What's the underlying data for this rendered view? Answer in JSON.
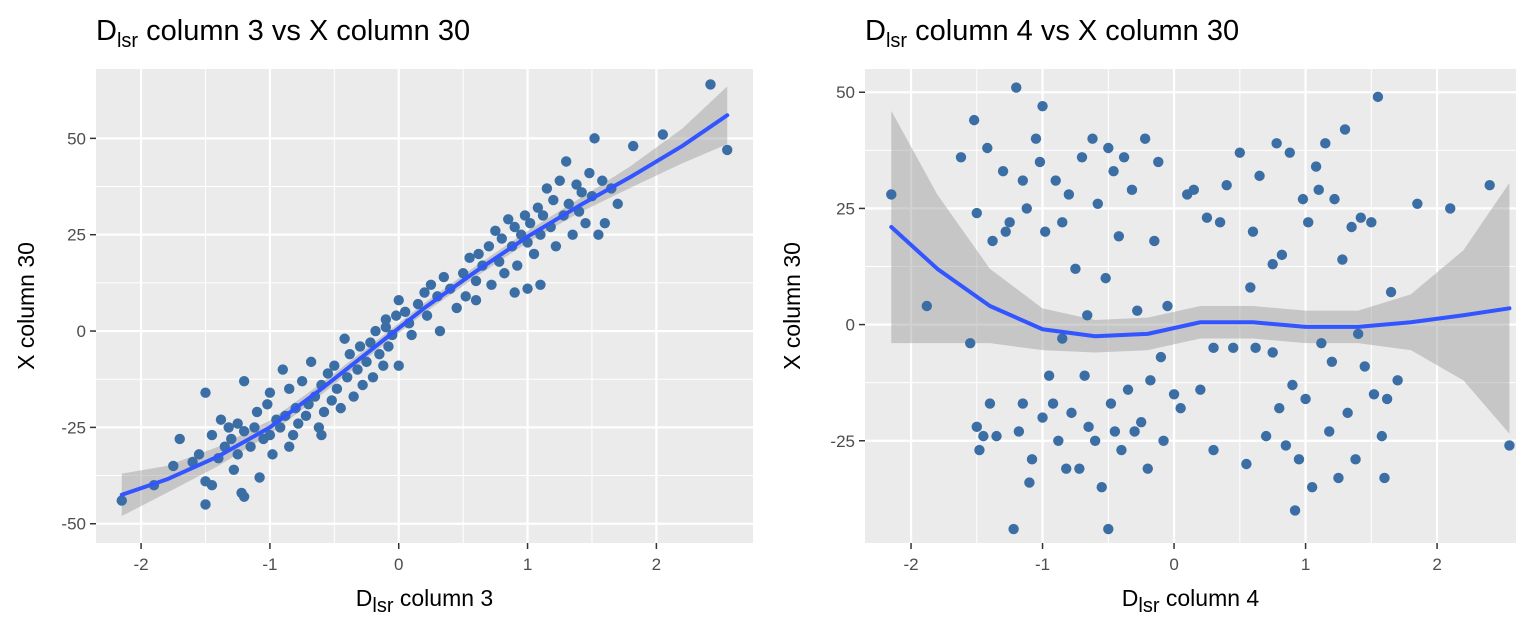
{
  "chart_data": [
    {
      "type": "scatter",
      "title_main": "D",
      "title_sub": "lsr",
      "title_rest": " column 3 vs X column 30",
      "xlabel_main": "D",
      "xlabel_sub": "lsr",
      "xlabel_rest": " column 3",
      "ylabel": "X column 30",
      "xlim": [
        -2.35,
        2.75
      ],
      "ylim": [
        -55,
        68
      ],
      "xticks": [
        -2,
        -1,
        0,
        1,
        2
      ],
      "xtick_labels": [
        "-2",
        "-1",
        "0",
        "1",
        "2"
      ],
      "yticks": [
        -50,
        -25,
        0,
        25,
        50
      ],
      "ytick_labels": [
        "-50",
        "-25",
        "0",
        "25",
        "50"
      ],
      "grid": true,
      "point_color": "#3a6ea5",
      "smooth_color": "#3355ff",
      "band_color": "#999999",
      "smooth": {
        "x": [
          -2.15,
          -1.8,
          -1.4,
          -1.0,
          -0.6,
          -0.2,
          0.2,
          0.6,
          1.0,
          1.4,
          1.8,
          2.2,
          2.55
        ],
        "y": [
          -42.5,
          -38.5,
          -32.5,
          -25,
          -15,
          -4.5,
          6,
          15.5,
          24.5,
          32.5,
          40,
          48,
          56
        ]
      },
      "band_halfwidth": [
        5.5,
        3.5,
        2.5,
        1.8,
        1.5,
        1.3,
        1.3,
        1.4,
        1.5,
        1.8,
        2.8,
        4.5,
        7.5
      ],
      "points": [
        [
          -2.15,
          -44
        ],
        [
          -1.9,
          -40
        ],
        [
          -1.75,
          -35
        ],
        [
          -1.7,
          -28
        ],
        [
          -1.6,
          -34
        ],
        [
          -1.55,
          -32
        ],
        [
          -1.5,
          -16
        ],
        [
          -1.5,
          -39
        ],
        [
          -1.5,
          -45
        ],
        [
          -1.45,
          -40
        ],
        [
          -1.45,
          -27
        ],
        [
          -1.4,
          -33
        ],
        [
          -1.38,
          -23
        ],
        [
          -1.35,
          -30
        ],
        [
          -1.32,
          -25
        ],
        [
          -1.3,
          -28
        ],
        [
          -1.28,
          -36
        ],
        [
          -1.25,
          -24
        ],
        [
          -1.25,
          -32
        ],
        [
          -1.22,
          -42
        ],
        [
          -1.2,
          -43
        ],
        [
          -1.2,
          -26
        ],
        [
          -1.2,
          -13
        ],
        [
          -1.15,
          -30
        ],
        [
          -1.12,
          -25
        ],
        [
          -1.1,
          -21
        ],
        [
          -1.08,
          -38
        ],
        [
          -1.05,
          -28
        ],
        [
          -1.02,
          -19
        ],
        [
          -1.0,
          -16
        ],
        [
          -1.0,
          -27
        ],
        [
          -0.98,
          -32
        ],
        [
          -0.95,
          -23
        ],
        [
          -0.92,
          -25
        ],
        [
          -0.9,
          -10
        ],
        [
          -0.88,
          -22
        ],
        [
          -0.85,
          -30
        ],
        [
          -0.85,
          -15
        ],
        [
          -0.82,
          -27
        ],
        [
          -0.8,
          -20
        ],
        [
          -0.78,
          -24
        ],
        [
          -0.75,
          -13
        ],
        [
          -0.72,
          -22
        ],
        [
          -0.7,
          -19
        ],
        [
          -0.68,
          -8
        ],
        [
          -0.65,
          -17
        ],
        [
          -0.62,
          -25
        ],
        [
          -0.6,
          -14
        ],
        [
          -0.58,
          -21
        ],
        [
          -0.55,
          -11
        ],
        [
          -0.52,
          -18
        ],
        [
          -0.5,
          -9
        ],
        [
          -0.48,
          -15
        ],
        [
          -0.45,
          -20
        ],
        [
          -0.42,
          -2
        ],
        [
          -0.4,
          -12
        ],
        [
          -0.38,
          -6
        ],
        [
          -0.35,
          -17
        ],
        [
          -0.32,
          -10
        ],
        [
          -0.3,
          -4
        ],
        [
          -0.28,
          -14
        ],
        [
          -0.25,
          -8
        ],
        [
          -0.22,
          -3
        ],
        [
          -0.2,
          -12
        ],
        [
          -0.18,
          0
        ],
        [
          -0.15,
          -6
        ],
        [
          -0.12,
          -9
        ],
        [
          -0.1,
          3
        ],
        [
          -0.08,
          -4
        ],
        [
          -0.05,
          -1
        ],
        [
          -0.02,
          4
        ],
        [
          0.0,
          8
        ],
        [
          0.0,
          -9
        ],
        [
          0.05,
          5
        ],
        [
          0.08,
          2
        ],
        [
          0.1,
          -1
        ],
        [
          0.15,
          7
        ],
        [
          0.2,
          10
        ],
        [
          0.22,
          4
        ],
        [
          0.25,
          12
        ],
        [
          0.3,
          9
        ],
        [
          0.32,
          0
        ],
        [
          0.35,
          14
        ],
        [
          0.4,
          11
        ],
        [
          0.45,
          6
        ],
        [
          0.5,
          15
        ],
        [
          0.52,
          9
        ],
        [
          0.55,
          19
        ],
        [
          0.6,
          13
        ],
        [
          0.62,
          20
        ],
        [
          0.65,
          17
        ],
        [
          0.7,
          22
        ],
        [
          0.72,
          12
        ],
        [
          0.75,
          26
        ],
        [
          0.78,
          18
        ],
        [
          0.8,
          24
        ],
        [
          0.82,
          15
        ],
        [
          0.85,
          29
        ],
        [
          0.88,
          22
        ],
        [
          0.9,
          27
        ],
        [
          0.92,
          17
        ],
        [
          0.95,
          25
        ],
        [
          0.98,
          30
        ],
        [
          1.0,
          23
        ],
        [
          1.02,
          28
        ],
        [
          1.05,
          20
        ],
        [
          1.08,
          32
        ],
        [
          1.1,
          25
        ],
        [
          1.12,
          30
        ],
        [
          1.15,
          37
        ],
        [
          1.18,
          27
        ],
        [
          1.2,
          34
        ],
        [
          1.22,
          22
        ],
        [
          1.25,
          39
        ],
        [
          1.28,
          30
        ],
        [
          1.3,
          44
        ],
        [
          1.32,
          33
        ],
        [
          1.35,
          25
        ],
        [
          1.38,
          38
        ],
        [
          1.4,
          31
        ],
        [
          1.42,
          36
        ],
        [
          1.45,
          28
        ],
        [
          1.48,
          41
        ],
        [
          1.5,
          35
        ],
        [
          1.52,
          50
        ],
        [
          1.55,
          25
        ],
        [
          1.58,
          39
        ],
        [
          1.6,
          28
        ],
        [
          1.65,
          37
        ],
        [
          1.7,
          33
        ],
        [
          1.82,
          48
        ],
        [
          2.05,
          51
        ],
        [
          2.42,
          64
        ],
        [
          2.55,
          47
        ],
        [
          1.0,
          11
        ],
        [
          1.1,
          12
        ],
        [
          0.9,
          10
        ],
        [
          0.6,
          8
        ],
        [
          -0.1,
          1
        ],
        [
          -0.6,
          -27
        ]
      ]
    },
    {
      "type": "scatter",
      "title_main": "D",
      "title_sub": "lsr",
      "title_rest": " column 4 vs X column 30",
      "xlabel_main": "D",
      "xlabel_sub": "lsr",
      "xlabel_rest": " column 4",
      "ylabel": "X column 30",
      "xlim": [
        -2.35,
        2.6
      ],
      "ylim": [
        -47,
        55
      ],
      "xticks": [
        -2,
        -1,
        0,
        1,
        2
      ],
      "xtick_labels": [
        "-2",
        "-1",
        "0",
        "1",
        "2"
      ],
      "yticks": [
        -25,
        0,
        25,
        50
      ],
      "ytick_labels": [
        "-25",
        "0",
        "25",
        "50"
      ],
      "grid": true,
      "point_color": "#3a6ea5",
      "smooth_color": "#3355ff",
      "band_color": "#999999",
      "smooth": {
        "x": [
          -2.15,
          -1.8,
          -1.4,
          -1.0,
          -0.6,
          -0.2,
          0.2,
          0.6,
          1.0,
          1.4,
          1.8,
          2.2,
          2.55
        ],
        "y": [
          21,
          12,
          4,
          -1,
          -2.5,
          -2,
          0.5,
          0.5,
          -0.5,
          -0.5,
          0.5,
          2,
          3.5
        ]
      },
      "band_halfwidth": [
        25,
        16,
        8,
        4.5,
        3.5,
        3.5,
        3.5,
        3.5,
        3.5,
        3.5,
        6,
        14,
        27
      ],
      "points": [
        [
          -2.15,
          28
        ],
        [
          -1.88,
          4
        ],
        [
          -1.62,
          36
        ],
        [
          -1.55,
          -4
        ],
        [
          -1.52,
          44
        ],
        [
          -1.5,
          24
        ],
        [
          -1.5,
          -22
        ],
        [
          -1.48,
          -27
        ],
        [
          -1.45,
          -24
        ],
        [
          -1.42,
          38
        ],
        [
          -1.4,
          -17
        ],
        [
          -1.38,
          18
        ],
        [
          -1.35,
          -24
        ],
        [
          -1.3,
          33
        ],
        [
          -1.28,
          20
        ],
        [
          -1.25,
          22
        ],
        [
          -1.22,
          -44
        ],
        [
          -1.2,
          51
        ],
        [
          -1.18,
          -23
        ],
        [
          -1.15,
          -17
        ],
        [
          -1.15,
          31
        ],
        [
          -1.12,
          25
        ],
        [
          -1.1,
          -34
        ],
        [
          -1.08,
          -29
        ],
        [
          -1.05,
          40
        ],
        [
          -1.02,
          35
        ],
        [
          -1.0,
          -20
        ],
        [
          -1.0,
          47
        ],
        [
          -0.98,
          20
        ],
        [
          -0.95,
          -11
        ],
        [
          -0.92,
          -17
        ],
        [
          -0.9,
          31
        ],
        [
          -0.88,
          -25
        ],
        [
          -0.85,
          22
        ],
        [
          -0.82,
          -31
        ],
        [
          -0.8,
          28
        ],
        [
          -0.78,
          -19
        ],
        [
          -0.75,
          12
        ],
        [
          -0.72,
          -31
        ],
        [
          -0.7,
          36
        ],
        [
          -0.68,
          -11
        ],
        [
          -0.66,
          2
        ],
        [
          -0.65,
          -22
        ],
        [
          -0.62,
          40
        ],
        [
          -0.6,
          -25
        ],
        [
          -0.58,
          26
        ],
        [
          -0.55,
          -35
        ],
        [
          -0.52,
          10
        ],
        [
          -0.5,
          -44
        ],
        [
          -0.5,
          38
        ],
        [
          -0.48,
          -17
        ],
        [
          -0.46,
          33
        ],
        [
          -0.45,
          -23
        ],
        [
          -0.42,
          19
        ],
        [
          -0.4,
          -27
        ],
        [
          -0.38,
          36
        ],
        [
          -0.35,
          -14
        ],
        [
          -0.32,
          29
        ],
        [
          -0.3,
          -23
        ],
        [
          -0.28,
          3
        ],
        [
          -0.25,
          -21
        ],
        [
          -0.22,
          40
        ],
        [
          -0.2,
          -31
        ],
        [
          -0.18,
          -12
        ],
        [
          -0.15,
          18
        ],
        [
          -0.12,
          35
        ],
        [
          -0.1,
          -7
        ],
        [
          -0.08,
          -25
        ],
        [
          -0.05,
          4
        ],
        [
          0.0,
          -15
        ],
        [
          0.05,
          -18
        ],
        [
          0.1,
          28
        ],
        [
          0.15,
          29
        ],
        [
          0.2,
          -14
        ],
        [
          0.25,
          23
        ],
        [
          0.3,
          -27
        ],
        [
          0.35,
          22
        ],
        [
          0.4,
          30
        ],
        [
          0.45,
          -5
        ],
        [
          0.5,
          37
        ],
        [
          0.55,
          -30
        ],
        [
          0.58,
          8
        ],
        [
          0.6,
          20
        ],
        [
          0.62,
          -5
        ],
        [
          0.65,
          32
        ],
        [
          0.7,
          -24
        ],
        [
          0.75,
          13
        ],
        [
          0.78,
          39
        ],
        [
          0.8,
          -18
        ],
        [
          0.82,
          15
        ],
        [
          0.85,
          -26
        ],
        [
          0.88,
          37
        ],
        [
          0.9,
          -13
        ],
        [
          0.92,
          -40
        ],
        [
          0.95,
          -29
        ],
        [
          0.98,
          27
        ],
        [
          1.0,
          -16
        ],
        [
          1.02,
          22
        ],
        [
          1.05,
          -35
        ],
        [
          1.08,
          34
        ],
        [
          1.1,
          29
        ],
        [
          1.12,
          -4
        ],
        [
          1.15,
          39
        ],
        [
          1.18,
          -23
        ],
        [
          1.2,
          -8
        ],
        [
          1.22,
          27
        ],
        [
          1.25,
          -33
        ],
        [
          1.28,
          14
        ],
        [
          1.3,
          42
        ],
        [
          1.32,
          -19
        ],
        [
          1.35,
          21
        ],
        [
          1.38,
          -29
        ],
        [
          1.4,
          -2
        ],
        [
          1.42,
          23
        ],
        [
          1.45,
          -9
        ],
        [
          1.5,
          22
        ],
        [
          1.52,
          -15
        ],
        [
          1.55,
          49
        ],
        [
          1.58,
          -24
        ],
        [
          1.6,
          -33
        ],
        [
          1.62,
          -16
        ],
        [
          1.65,
          7
        ],
        [
          1.7,
          -12
        ],
        [
          1.85,
          26
        ],
        [
          2.1,
          25
        ],
        [
          2.4,
          30
        ],
        [
          2.55,
          -26
        ],
        [
          0.3,
          -5
        ],
        [
          -0.85,
          -3
        ],
        [
          0.75,
          -6
        ]
      ]
    }
  ]
}
